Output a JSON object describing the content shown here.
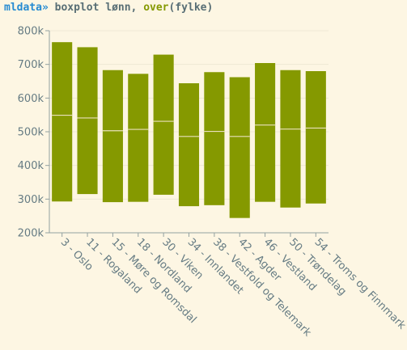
{
  "command": {
    "prompt": "mldata»",
    "text_before": " boxplot lønn, ",
    "fn": "over",
    "text_after": "(fylke)"
  },
  "colors": {
    "background": "#fdf6e3",
    "box_fill": "#859900",
    "median_line": "#e9e0bd",
    "axis": "#93a1a1",
    "grid": "#eee8d5",
    "tick_text": "#657b83",
    "prompt": "#268bd2"
  },
  "chart_data": {
    "type": "boxplot",
    "title": "",
    "xlabel": "",
    "ylabel": "",
    "ylim": [
      200000,
      800000
    ],
    "yticks": [
      200000,
      300000,
      400000,
      500000,
      600000,
      700000,
      800000
    ],
    "ytick_labels": [
      "200k",
      "300k",
      "400k",
      "500k",
      "600k",
      "700k",
      "800k"
    ],
    "grid": true,
    "categories": [
      "3 - Oslo",
      "11 - Rogaland",
      "15 - Møre og Romsdal",
      "18 - Nordland",
      "30 - Viken",
      "34 - Innlandet",
      "38 - Vestfold og Telemark",
      "42 - Agder",
      "46 - Vestland",
      "50 - Trøndelag",
      "54 - Troms og Finnmark"
    ],
    "boxes": [
      {
        "low": 293000,
        "median": 549000,
        "high": 766000
      },
      {
        "low": 315000,
        "median": 541000,
        "high": 751000
      },
      {
        "low": 291000,
        "median": 503000,
        "high": 683000
      },
      {
        "low": 292000,
        "median": 507000,
        "high": 672000
      },
      {
        "low": 313000,
        "median": 531000,
        "high": 729000
      },
      {
        "low": 279000,
        "median": 486000,
        "high": 644000
      },
      {
        "low": 282000,
        "median": 501000,
        "high": 677000
      },
      {
        "low": 244000,
        "median": 486000,
        "high": 662000
      },
      {
        "low": 292000,
        "median": 520000,
        "high": 704000
      },
      {
        "low": 275000,
        "median": 508000,
        "high": 683000
      },
      {
        "low": 287000,
        "median": 511000,
        "high": 680000
      }
    ]
  }
}
